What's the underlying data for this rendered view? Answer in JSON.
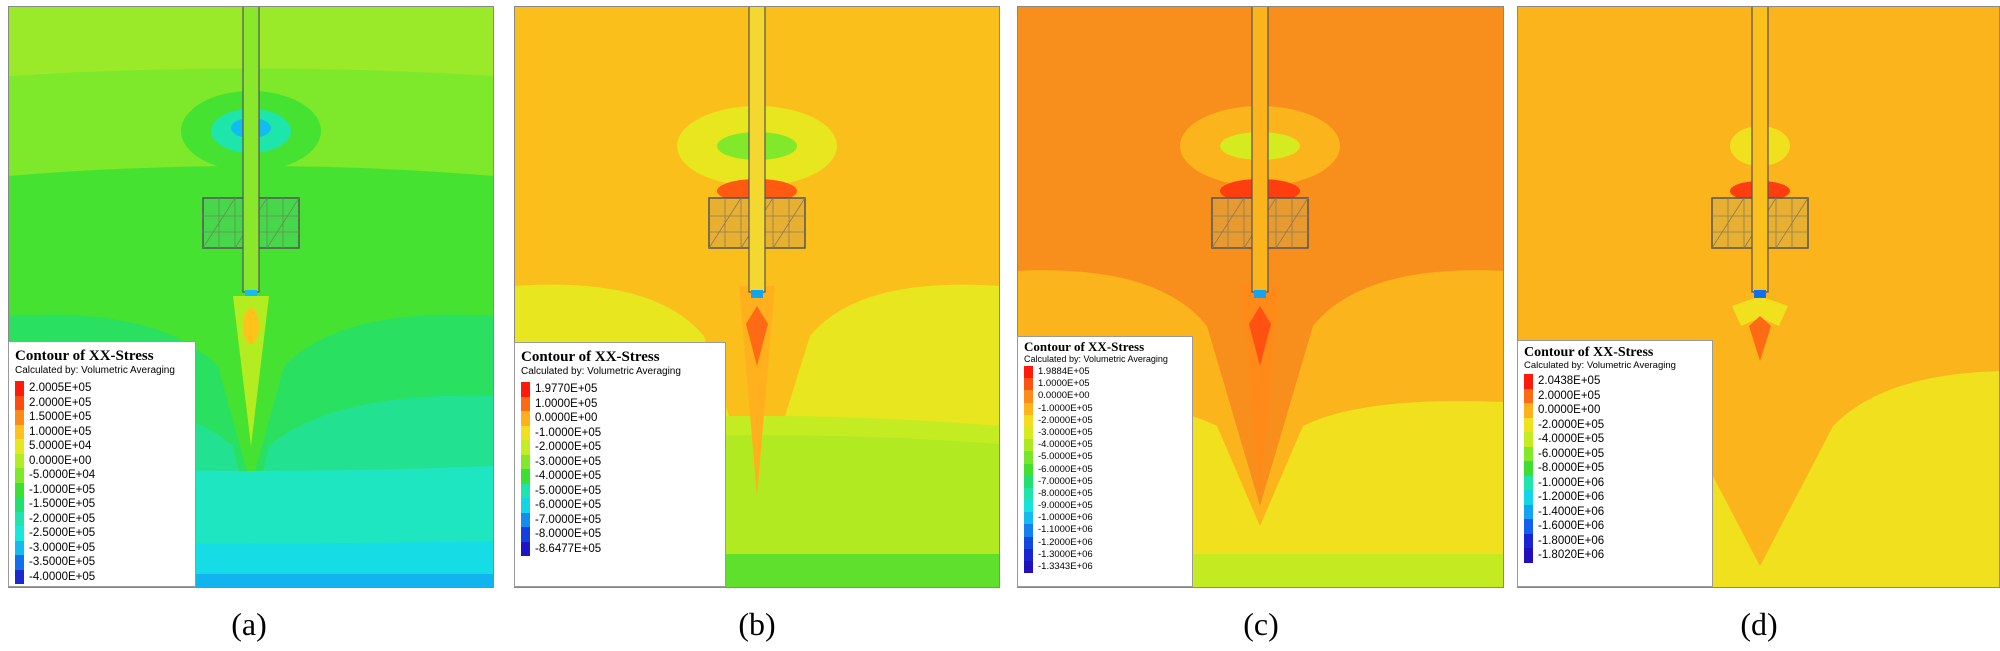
{
  "panels": [
    {
      "caption": "(a)",
      "legend": {
        "title": "Contour of XX-Stress",
        "subtitle": "Calculated by: Volumetric Averaging",
        "entries": [
          {
            "label": "2.0005E+05",
            "color": "#ff1a0a"
          },
          {
            "label": "2.0000E+05",
            "color": "#ff4a10"
          },
          {
            "label": "1.5000E+05",
            "color": "#ff8a18"
          },
          {
            "label": "1.0000E+05",
            "color": "#ffc21c"
          },
          {
            "label": "5.0000E+04",
            "color": "#e6e81e"
          },
          {
            "label": "0.0000E+00",
            "color": "#b4ec22"
          },
          {
            "label": "-5.0000E+04",
            "color": "#7ee82a"
          },
          {
            "label": "-1.0000E+05",
            "color": "#3ce032"
          },
          {
            "label": "-1.5000E+05",
            "color": "#22e070"
          },
          {
            "label": "-2.0000E+05",
            "color": "#1ee6aa"
          },
          {
            "label": "-2.5000E+05",
            "color": "#16e8dc"
          },
          {
            "label": "-3.0000E+05",
            "color": "#12bcf0"
          },
          {
            "label": "-3.5000E+05",
            "color": "#1270f0"
          },
          {
            "label": "-4.0000E+05",
            "color": "#1a2ad0"
          }
        ]
      }
    },
    {
      "caption": "(b)",
      "legend": {
        "title": "Contour of XX-Stress",
        "subtitle": "Calculated by: Volumetric Averaging",
        "entries": [
          {
            "label": "1.9770E+05",
            "color": "#ff1a0a"
          },
          {
            "label": "1.0000E+05",
            "color": "#ff6a14"
          },
          {
            "label": "0.0000E+00",
            "color": "#ffb01c"
          },
          {
            "label": "-1.0000E+05",
            "color": "#f0e01e"
          },
          {
            "label": "-2.0000E+05",
            "color": "#c4ec22"
          },
          {
            "label": "-3.0000E+05",
            "color": "#82e82a"
          },
          {
            "label": "-4.0000E+05",
            "color": "#3ce032"
          },
          {
            "label": "-5.0000E+05",
            "color": "#1ee6aa"
          },
          {
            "label": "-6.0000E+05",
            "color": "#14d4e8"
          },
          {
            "label": "-7.0000E+05",
            "color": "#128cf0"
          },
          {
            "label": "-8.0000E+05",
            "color": "#1440e0"
          },
          {
            "label": "-8.6477E+05",
            "color": "#1e14c8"
          }
        ]
      }
    },
    {
      "caption": "(c)",
      "legend": {
        "title": "Contour of XX-Stress",
        "subtitle": "Calculated by: Volumetric Averaging",
        "entries": [
          {
            "label": "1.9884E+05",
            "color": "#ff1a0a"
          },
          {
            "label": "1.0000E+05",
            "color": "#ff5212"
          },
          {
            "label": "0.0000E+00",
            "color": "#ff8a18"
          },
          {
            "label": "-1.0000E+05",
            "color": "#ffb41c"
          },
          {
            "label": "-2.0000E+05",
            "color": "#f4dc1e"
          },
          {
            "label": "-3.0000E+05",
            "color": "#d6ea20"
          },
          {
            "label": "-4.0000E+05",
            "color": "#aaea24"
          },
          {
            "label": "-5.0000E+05",
            "color": "#78e62a"
          },
          {
            "label": "-6.0000E+05",
            "color": "#44e030"
          },
          {
            "label": "-7.0000E+05",
            "color": "#22e070"
          },
          {
            "label": "-8.0000E+05",
            "color": "#1ee6aa"
          },
          {
            "label": "-9.0000E+05",
            "color": "#16e4dc"
          },
          {
            "label": "-1.0000E+06",
            "color": "#12bcf0"
          },
          {
            "label": "-1.1000E+06",
            "color": "#1280f0"
          },
          {
            "label": "-1.2000E+06",
            "color": "#1448e0"
          },
          {
            "label": "-1.3000E+06",
            "color": "#1a24d0"
          },
          {
            "label": "-1.3343E+06",
            "color": "#2010c0"
          }
        ]
      }
    },
    {
      "caption": "(d)",
      "legend": {
        "title": "Contour of XX-Stress",
        "subtitle": "Calculated by: Volumetric Averaging",
        "entries": [
          {
            "label": "2.0438E+05",
            "color": "#ff1a0a"
          },
          {
            "label": "2.0000E+05",
            "color": "#ff6a14"
          },
          {
            "label": "0.0000E+00",
            "color": "#ffb01c"
          },
          {
            "label": "-2.0000E+05",
            "color": "#f0e01e"
          },
          {
            "label": "-4.0000E+05",
            "color": "#c4ec22"
          },
          {
            "label": "-6.0000E+05",
            "color": "#82e82a"
          },
          {
            "label": "-8.0000E+05",
            "color": "#3ce032"
          },
          {
            "label": "-1.0000E+06",
            "color": "#1ee6aa"
          },
          {
            "label": "-1.2000E+06",
            "color": "#14d4e8"
          },
          {
            "label": "-1.4000E+06",
            "color": "#12a4f0"
          },
          {
            "label": "-1.6000E+06",
            "color": "#1260f0"
          },
          {
            "label": "-1.8000E+06",
            "color": "#1a24d0"
          },
          {
            "label": "-1.8020E+06",
            "color": "#2010c0"
          }
        ]
      }
    }
  ]
}
